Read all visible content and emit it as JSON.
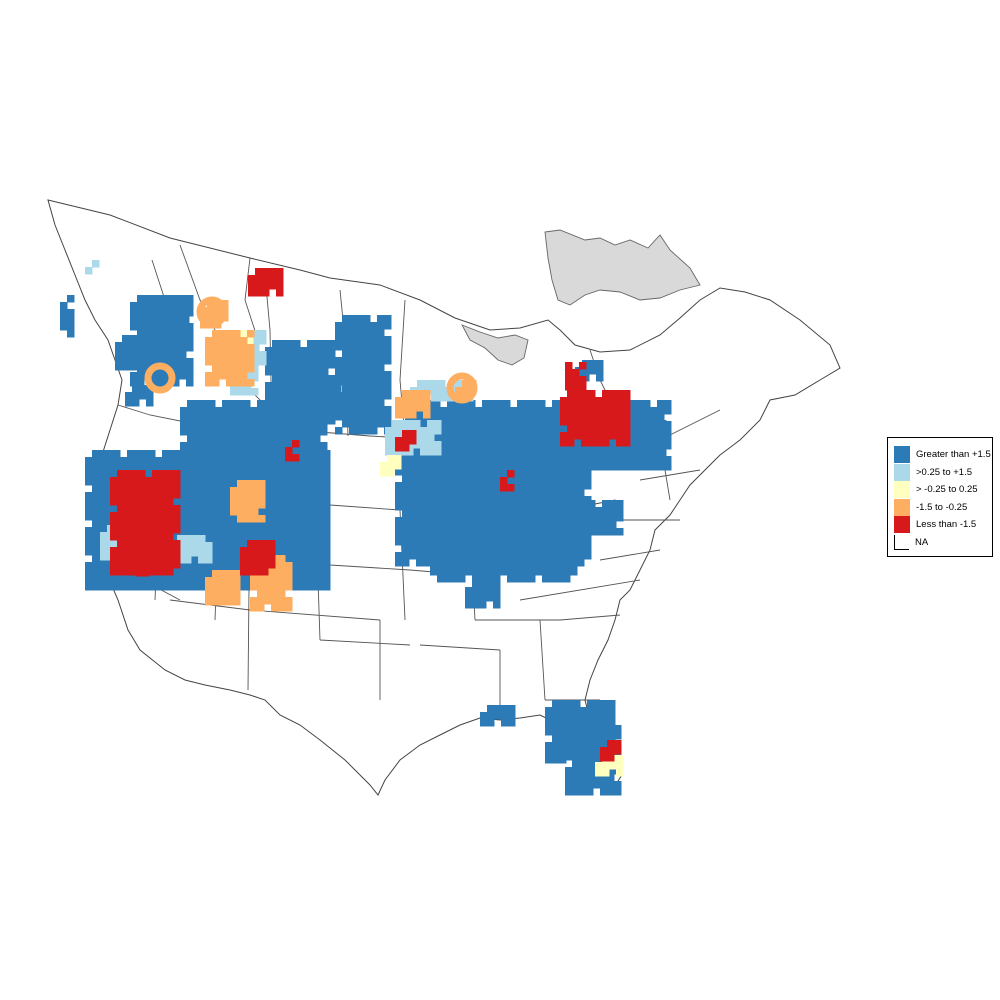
{
  "map": {
    "legend": {
      "items": [
        {
          "label": "Greater than +1.5",
          "color": "#2c7bb6"
        },
        {
          "label": ">0.25 to +1.5",
          "color": "#abd9e9"
        },
        {
          "label": "> -0.25 to 0.25",
          "color": "#ffffbf"
        },
        {
          "label": "-1.5 to -0.25",
          "color": "#fdae61"
        },
        {
          "label": "Less than -1.5",
          "color": "#d7191c"
        },
        {
          "label": "NA",
          "color": "#ffffff"
        }
      ]
    }
  }
}
